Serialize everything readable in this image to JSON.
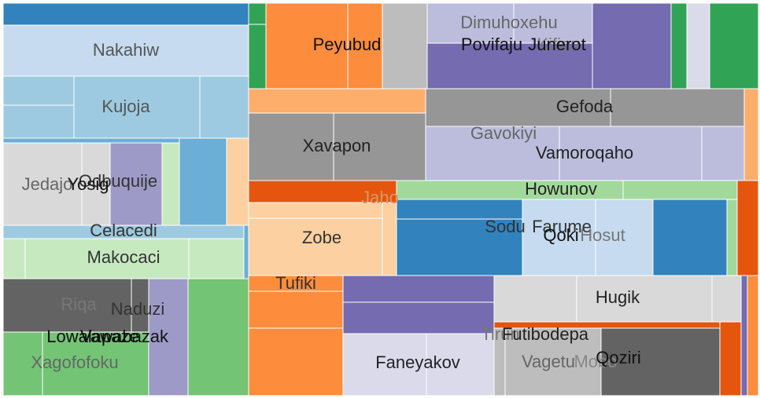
{
  "chart_data": {
    "type": "treemap",
    "colors": {
      "dark_blue": "#3182bd",
      "mid_blue": "#6baed6",
      "light_blue": "#9ecae1",
      "pale_blue": "#c6dbef",
      "dark_orange": "#e6550d",
      "mid_orange": "#fd8d3c",
      "light_orange": "#fdae6b",
      "pale_orange": "#fdd0a2",
      "dark_green": "#31a354",
      "mid_green": "#74c476",
      "light_green": "#a1d99b",
      "pale_green": "#c7e9c0",
      "dark_purple": "#756bb1",
      "mid_purple": "#9e9ac8",
      "light_purple": "#bcbddc",
      "pale_purple": "#dadaeb",
      "dark_gray": "#636363",
      "mid_gray": "#969696",
      "light_gray": "#bdbdbd",
      "pale_gray": "#d9d9d9"
    },
    "nodes": [
      {
        "name": "Nakahiw",
        "label_color": "#555555"
      },
      {
        "name": "Kujoja",
        "label_color": "#555555"
      },
      {
        "name": "Jedajo",
        "label_color": "#666666"
      },
      {
        "name": "Odbuquije",
        "label_color": "#333333"
      },
      {
        "name": "Yosig",
        "label_color": "#111111"
      },
      {
        "name": "Celacedi",
        "label_color": "#333333"
      },
      {
        "name": "Makocaci",
        "label_color": "#333333"
      },
      {
        "name": "Riqa",
        "label_color": "#777777"
      },
      {
        "name": "Naduzi",
        "label_color": "#333333"
      },
      {
        "name": "Vawabazak",
        "label_color": "#111111"
      },
      {
        "name": "Lowalapaze",
        "label_color": "#111111"
      },
      {
        "name": "Xagofofoku",
        "label_color": "#666666"
      },
      {
        "name": "Peyubud",
        "label_color": "#111111"
      },
      {
        "name": "Dimuhoxehu",
        "label_color": "#666666"
      },
      {
        "name": "Kifipu",
        "label_color": "#777777"
      },
      {
        "name": "Povifaju",
        "label_color": "#111111"
      },
      {
        "name": "Junerot",
        "label_color": "#111111"
      },
      {
        "name": "Gefoda",
        "label_color": "#222222"
      },
      {
        "name": "Xavapon",
        "label_color": "#222222"
      },
      {
        "name": "Gavokiyi",
        "label_color": "#666666"
      },
      {
        "name": "Vamoroqaho",
        "label_color": "#222222"
      },
      {
        "name": "Jaho",
        "label_color": "#d49a6a"
      },
      {
        "name": "Howunov",
        "label_color": "#222222"
      },
      {
        "name": "Sodu",
        "label_color": "#333333"
      },
      {
        "name": "Farume",
        "label_color": "#333333"
      },
      {
        "name": "Qoki",
        "label_color": "#111111"
      },
      {
        "name": "Hosut",
        "label_color": "#777777"
      },
      {
        "name": "Zobe",
        "label_color": "#333333"
      },
      {
        "name": "Tufiki",
        "label_color": "#333333"
      },
      {
        "name": "Hugik",
        "label_color": "#222222"
      },
      {
        "name": "Tirun",
        "label_color": "#777777"
      },
      {
        "name": "Futibodepa",
        "label_color": "#222222"
      },
      {
        "name": "Faneyakov",
        "label_color": "#222222"
      },
      {
        "name": "Vagetu",
        "label_color": "#666666"
      },
      {
        "name": "Mobo",
        "label_color": "#888888"
      },
      {
        "name": "Qoziri",
        "label_color": "#111111"
      }
    ]
  }
}
